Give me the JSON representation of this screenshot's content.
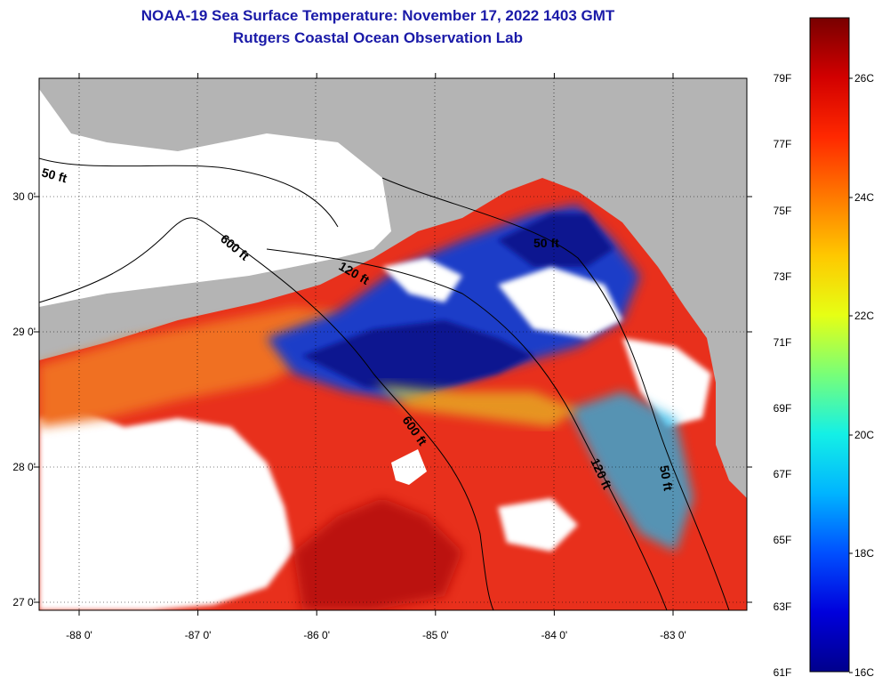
{
  "title": {
    "line1": "NOAA-19 Sea Surface Temperature:  November 17, 2022 1403 GMT",
    "line2": "Rutgers Coastal Ocean Observation Lab"
  },
  "map": {
    "lat_ticks": [
      {
        "value": 30,
        "label": "30 0'"
      },
      {
        "value": 29,
        "label": "29 0'"
      },
      {
        "value": 28,
        "label": "28 0'"
      },
      {
        "value": 27,
        "label": "27 0'"
      }
    ],
    "lon_ticks": [
      {
        "value": -88,
        "label": "-88 0'"
      },
      {
        "value": -87,
        "label": "-87 0'"
      },
      {
        "value": -86,
        "label": "-86 0'"
      },
      {
        "value": -85,
        "label": "-85 0'"
      },
      {
        "value": -84,
        "label": "-84 0'"
      },
      {
        "value": -83,
        "label": "-83 0'"
      }
    ],
    "contour_labels": [
      "50 ft",
      "600 ft",
      "120 ft",
      "50 ft",
      "600 ft",
      "120 ft",
      "50 ft"
    ],
    "colors": {
      "land": "#b4b4b4",
      "cloud": "#ffffff",
      "warm": "#e8301c",
      "hot": "#c80f0f",
      "orange": "#f0701e",
      "cool": "#1e3cc8",
      "cold": "#0a1490",
      "cyan": "#28b4e6"
    }
  },
  "colorbar": {
    "fahrenheit": [
      "79F",
      "77F",
      "75F",
      "73F",
      "71F",
      "69F",
      "67F",
      "65F",
      "63F",
      "61F"
    ],
    "celsius": [
      "26C",
      "24C",
      "22C",
      "20C",
      "18C",
      "16C"
    ],
    "gradient": [
      "#00008c",
      "#0000dc",
      "#0050ff",
      "#00b4ff",
      "#14f0e6",
      "#78ff78",
      "#e6ff14",
      "#ffc800",
      "#ff7800",
      "#ff2800",
      "#d20000",
      "#780000"
    ]
  }
}
